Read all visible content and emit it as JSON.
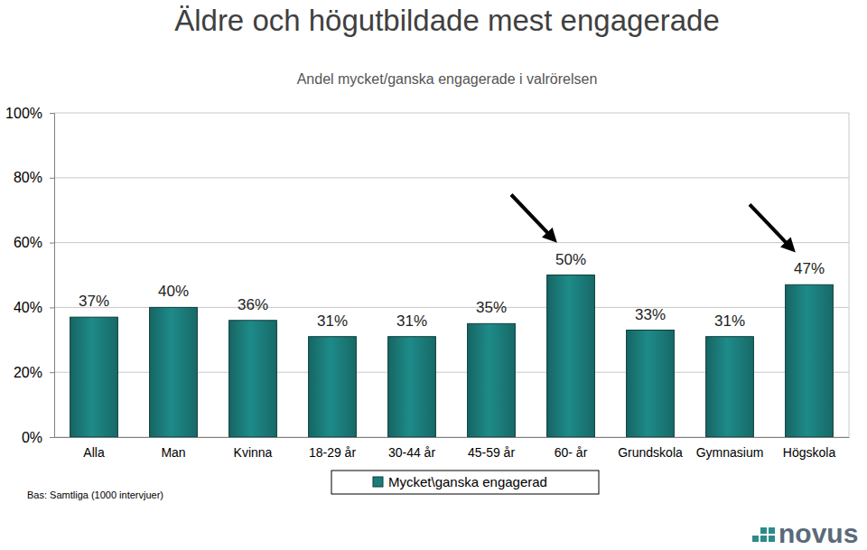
{
  "chart_data": {
    "type": "bar",
    "title": "Äldre och högutbildade mest engagerade",
    "subtitle": "Andel mycket/ganska engagerade i valrörelsen",
    "categories": [
      "Alla",
      "Man",
      "Kvinna",
      "18-29 år",
      "30-44 år",
      "45-59 år",
      "60- år",
      "Grundskola",
      "Gymnasium",
      "Högskola"
    ],
    "series": [
      {
        "name": "Mycket\\ganska engagerad",
        "color": "#1b7d7b",
        "values": [
          37,
          40,
          36,
          31,
          31,
          35,
          50,
          33,
          31,
          47
        ],
        "value_labels": [
          "37%",
          "40%",
          "36%",
          "31%",
          "31%",
          "35%",
          "50%",
          "33%",
          "31%",
          "47%"
        ]
      }
    ],
    "ylim": [
      0,
      100
    ],
    "yticks": [
      {
        "value": 0,
        "label": "0%"
      },
      {
        "value": 20,
        "label": "20%"
      },
      {
        "value": 40,
        "label": "40%"
      },
      {
        "value": 60,
        "label": "60%"
      },
      {
        "value": 80,
        "label": "80%"
      },
      {
        "value": 100,
        "label": "100%"
      }
    ],
    "grid": true,
    "legend": "bottom",
    "data_labels": true,
    "annotations": [
      "Bas: Samtliga (1000 intervjuer)",
      "novus"
    ]
  }
}
